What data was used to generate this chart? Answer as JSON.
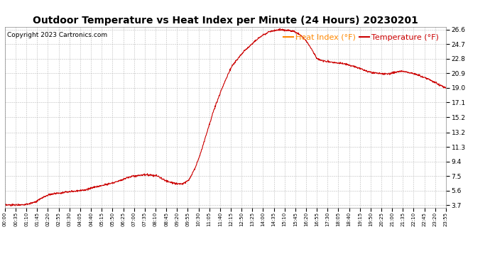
{
  "title": "Outdoor Temperature vs Heat Index per Minute (24 Hours) 20230201",
  "copyright": "Copyright 2023 Cartronics.com",
  "legend_heat": "Heat Index (°F)",
  "legend_temp": "Temperature (°F)",
  "line_color": "#cc0000",
  "legend_heat_color": "#ff8800",
  "background_color": "#ffffff",
  "grid_color": "#bbbbbb",
  "title_fontsize": 10,
  "copyright_fontsize": 6.5,
  "legend_fontsize": 8,
  "ytick_labels": [
    "3.7",
    "5.6",
    "7.5",
    "9.4",
    "11.3",
    "13.2",
    "15.2",
    "17.1",
    "19.0",
    "20.9",
    "22.8",
    "24.7",
    "26.6"
  ],
  "ytick_values": [
    3.7,
    5.6,
    7.5,
    9.4,
    11.3,
    13.2,
    15.2,
    17.1,
    19.0,
    20.9,
    22.8,
    24.7,
    26.6
  ],
  "xtick_labels": [
    "00:00",
    "00:35",
    "01:10",
    "01:45",
    "02:20",
    "02:55",
    "03:30",
    "04:05",
    "04:40",
    "05:15",
    "05:50",
    "06:25",
    "07:00",
    "07:35",
    "08:10",
    "08:45",
    "09:20",
    "09:55",
    "10:30",
    "11:05",
    "11:40",
    "12:15",
    "12:50",
    "13:25",
    "14:00",
    "14:35",
    "15:10",
    "15:45",
    "16:20",
    "16:55",
    "17:30",
    "18:05",
    "18:40",
    "19:15",
    "19:50",
    "20:25",
    "21:00",
    "21:35",
    "22:10",
    "22:45",
    "23:20",
    "23:55"
  ],
  "keypoints_t": [
    0,
    0.014,
    0.028,
    0.042,
    0.056,
    0.07,
    0.083,
    0.097,
    0.111,
    0.125,
    0.139,
    0.153,
    0.167,
    0.181,
    0.194,
    0.208,
    0.222,
    0.236,
    0.25,
    0.264,
    0.278,
    0.292,
    0.306,
    0.32,
    0.333,
    0.347,
    0.361,
    0.375,
    0.389,
    0.403,
    0.417,
    0.431,
    0.444,
    0.458,
    0.472,
    0.486,
    0.5,
    0.514,
    0.528,
    0.542,
    0.556,
    0.569,
    0.583,
    0.597,
    0.611,
    0.625,
    0.639,
    0.653,
    0.667,
    0.681,
    0.694,
    0.708,
    0.722,
    0.736,
    0.75,
    0.764,
    0.778,
    0.792,
    0.806,
    0.819,
    0.833,
    0.847,
    0.861,
    0.875,
    0.889,
    0.903,
    0.917,
    0.931,
    0.944,
    0.958,
    0.972,
    0.986,
    1.0
  ],
  "keypoints_v": [
    3.7,
    3.72,
    3.75,
    3.78,
    3.9,
    4.1,
    4.6,
    5.0,
    5.2,
    5.3,
    5.4,
    5.5,
    5.6,
    5.7,
    5.9,
    6.1,
    6.3,
    6.5,
    6.7,
    7.0,
    7.3,
    7.5,
    7.6,
    7.7,
    7.6,
    7.5,
    7.0,
    6.7,
    6.5,
    6.5,
    7.0,
    8.5,
    10.5,
    13.2,
    15.8,
    18.0,
    20.0,
    21.8,
    22.8,
    23.8,
    24.5,
    25.2,
    25.8,
    26.3,
    26.5,
    26.6,
    26.5,
    26.4,
    26.0,
    25.3,
    24.2,
    22.8,
    22.5,
    22.4,
    22.3,
    22.2,
    22.0,
    21.8,
    21.5,
    21.2,
    21.0,
    20.9,
    20.8,
    20.9,
    21.1,
    21.2,
    21.0,
    20.8,
    20.5,
    20.2,
    19.8,
    19.4,
    19.0
  ],
  "figsize": [
    6.9,
    3.75
  ],
  "dpi": 100
}
